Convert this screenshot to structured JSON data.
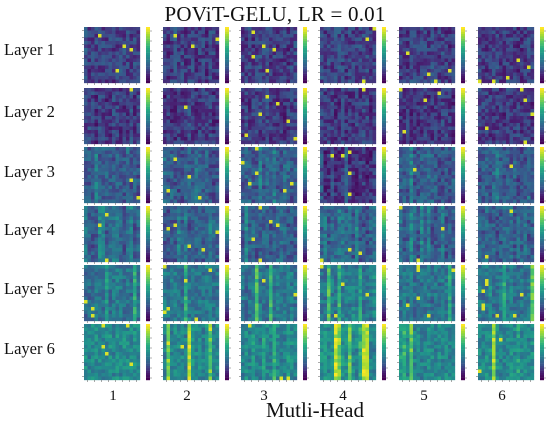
{
  "chart_data": {
    "type": "heatmap",
    "title": "POViT-GELU, LR = 0.01",
    "xlabel": "Mutli-Head",
    "ylabel": "",
    "rows": [
      "Layer 1",
      "Layer 2",
      "Layer 3",
      "Layer 4",
      "Layer 5",
      "Layer 6"
    ],
    "columns": [
      "1",
      "2",
      "3",
      "4",
      "5",
      "6"
    ],
    "colormap": "viridis",
    "cell_grid": 16,
    "colorbar": true,
    "colors": {
      "low": "#440154",
      "mid": "#21918c",
      "high": "#fde725",
      "background": "#ffffff"
    }
  }
}
